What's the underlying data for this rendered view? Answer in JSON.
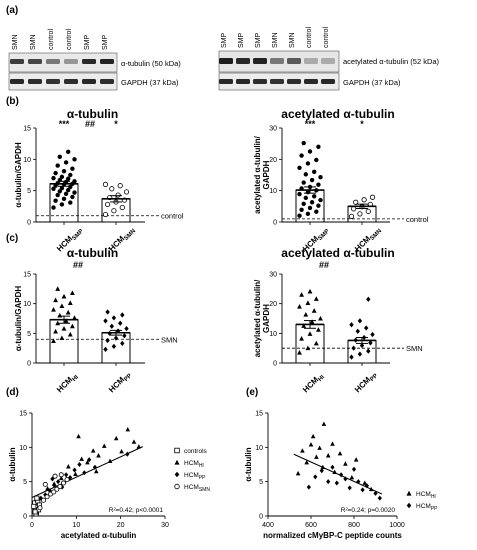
{
  "panel_labels": {
    "a": "(a)",
    "b": "(b)",
    "c": "(c)",
    "d": "(d)",
    "e": "(e)"
  },
  "blots": {
    "left": {
      "lanes": [
        "SMN",
        "SMN",
        "control",
        "control",
        "SMP",
        "SMP"
      ],
      "bands": [
        "α-tubulin (50 kDa)",
        "GAPDH (37 kDa)"
      ]
    },
    "right": {
      "lanes": [
        "SMP",
        "SMP",
        "SMP",
        "SMN",
        "SMN",
        "control",
        "control"
      ],
      "bands": [
        "acetylated α-tubulin (52 kDa)",
        "GAPDH (37 kDa)"
      ]
    }
  },
  "chart_data": [
    {
      "id": "b-left",
      "type": "bar",
      "title": "α-tubulin",
      "ylabel": "α-tubulin/GAPDH",
      "ylim": [
        0,
        15
      ],
      "yticks": [
        "0",
        "5",
        "10",
        "15"
      ],
      "categories": [
        {
          "main": "HCM",
          "sub": "SMP",
          "marker": "circle-filled",
          "mean": 6.1,
          "sem": 0.4,
          "stars": "***",
          "points": [
            2.3,
            2.8,
            3.1,
            3.4,
            3.7,
            4.0,
            4.3,
            4.5,
            4.7,
            4.9,
            5.1,
            5.3,
            5.4,
            5.6,
            5.8,
            6.0,
            6.1,
            6.2,
            6.4,
            6.5,
            6.7,
            6.9,
            7.0,
            7.2,
            7.5,
            7.8,
            8.1,
            8.5,
            9.0,
            9.5,
            10.0,
            10.4,
            11.2
          ]
        },
        {
          "main": "HCM",
          "sub": "SMN",
          "marker": "circle-open",
          "mean": 3.7,
          "sem": 0.5,
          "stars": "*",
          "points": [
            1.2,
            1.8,
            2.3,
            2.8,
            3.2,
            3.5,
            3.9,
            4.3,
            4.8,
            5.3,
            5.8,
            6.0
          ]
        }
      ],
      "between": "##",
      "ref_value": 1,
      "ref_label": "control"
    },
    {
      "id": "b-right",
      "type": "bar",
      "title": "acetylated α-tubulin",
      "ylabel": "acetylated α-tubulin/ GAPDH",
      "ylim": [
        0,
        30
      ],
      "yticks": [
        "0",
        "10",
        "20",
        "30"
      ],
      "categories": [
        {
          "main": "HCM",
          "sub": "SMP",
          "marker": "circle-filled",
          "mean": 10.2,
          "sem": 1.0,
          "stars": "***",
          "points": [
            2.0,
            2.6,
            3.3,
            3.9,
            4.5,
            5.2,
            5.8,
            6.3,
            7.0,
            7.7,
            8.2,
            8.9,
            9.5,
            10.1,
            10.7,
            11.2,
            11.9,
            12.6,
            13.4,
            14.3,
            15.2,
            16.0,
            17.3,
            18.7,
            19.8,
            21.2,
            22.5,
            24.0,
            25.2
          ]
        },
        {
          "main": "HCM",
          "sub": "SMN",
          "marker": "circle-open",
          "mean": 5.0,
          "sem": 0.7,
          "stars": "*",
          "points": [
            1.8,
            2.6,
            3.4,
            4.2,
            4.9,
            5.6,
            6.3,
            7.1,
            7.9
          ]
        }
      ],
      "between": "",
      "ref_value": 1,
      "ref_label": "control"
    },
    {
      "id": "c-left",
      "type": "bar",
      "title": "α-tubulin",
      "ylabel": "α-tubulin/GAPDH",
      "ylim": [
        0,
        15
      ],
      "yticks": [
        "0",
        "5",
        "10",
        "15"
      ],
      "categories": [
        {
          "main": "HCM",
          "sub": "HI",
          "marker": "triangle",
          "mean": 7.3,
          "sem": 0.6,
          "stars": "",
          "points": [
            3.7,
            4.2,
            4.8,
            5.3,
            5.8,
            6.2,
            6.7,
            7.1,
            7.6,
            8.0,
            8.5,
            9.0,
            9.6,
            10.1,
            10.6,
            11.2,
            11.8,
            12.5
          ]
        },
        {
          "main": "HCM",
          "sub": "PP",
          "marker": "diamond",
          "mean": 5.1,
          "sem": 0.4,
          "stars": "",
          "points": [
            2.3,
            2.8,
            3.3,
            3.8,
            4.2,
            4.6,
            5.0,
            5.4,
            5.8,
            6.2,
            6.7,
            7.1,
            7.6,
            8.1,
            8.6
          ]
        }
      ],
      "between": "##",
      "ref_value": 4,
      "ref_label": "SMN"
    },
    {
      "id": "c-right",
      "type": "bar",
      "title": "acetylated α-tubulin",
      "ylabel": "acetylated α-tubulin/ GAPDH",
      "ylim": [
        0,
        30
      ],
      "yticks": [
        "0",
        "10",
        "20",
        "30"
      ],
      "categories": [
        {
          "main": "HCM",
          "sub": "HI",
          "marker": "triangle",
          "mean": 13.0,
          "sem": 1.3,
          "stars": "",
          "points": [
            3.5,
            5.0,
            6.6,
            8.2,
            9.8,
            11.2,
            12.5,
            13.8,
            15.0,
            16.3,
            17.6,
            19.0,
            20.2,
            21.6,
            23.0,
            24.1
          ]
        },
        {
          "main": "HCM",
          "sub": "PP",
          "marker": "diamond",
          "mean": 7.6,
          "sem": 1.0,
          "stars": "",
          "points": [
            2.0,
            3.0,
            4.0,
            5.0,
            5.9,
            6.8,
            7.7,
            8.6,
            9.6,
            10.7,
            11.8,
            12.9,
            14.2,
            21.5
          ]
        }
      ],
      "between": "##",
      "ref_value": 5,
      "ref_label": "SMN"
    },
    {
      "id": "d",
      "type": "scatter",
      "xlabel": "acetylated α-tubulin",
      "ylabel": "α-tubulin",
      "xlim": [
        0,
        30
      ],
      "ylim": [
        0,
        15
      ],
      "xticks": [
        "0",
        "10",
        "20",
        "30"
      ],
      "yticks": [
        "0",
        "5",
        "10",
        "15"
      ],
      "stat": "R²=0.42; p<0.0001",
      "fit": {
        "x1": 0,
        "y1": 2.7,
        "x2": 25,
        "y2": 10.1
      },
      "series": [
        {
          "name": "controls",
          "marker": "square-open",
          "points": [
            [
              0.5,
              0.8
            ],
            [
              0.8,
              1.2
            ],
            [
              1.0,
              0.5
            ],
            [
              1.2,
              1.5
            ],
            [
              0.6,
              1.9
            ],
            [
              1.5,
              0.9
            ],
            [
              0.9,
              0.3
            ],
            [
              1.3,
              2.2
            ],
            [
              0.4,
              1.4
            ],
            [
              1.7,
              1.6
            ],
            [
              1.1,
              2.6
            ],
            [
              0.7,
              0.6
            ]
          ]
        },
        {
          "name": "HCM",
          "sub": "HI",
          "marker": "triangle",
          "points": [
            [
              3.5,
              4.0
            ],
            [
              6.6,
              5.5
            ],
            [
              8.2,
              7.2
            ],
            [
              9.8,
              6.1
            ],
            [
              11.2,
              8.3
            ],
            [
              12.5,
              7.8
            ],
            [
              13.8,
              9.5
            ],
            [
              15.0,
              8.8
            ],
            [
              16.3,
              10.2
            ],
            [
              17.6,
              8.0
            ],
            [
              19.0,
              11.3
            ],
            [
              20.2,
              9.4
            ],
            [
              21.6,
              12.6
            ],
            [
              23.0,
              10.8
            ],
            [
              24.1,
              10.1
            ],
            [
              5.0,
              4.7
            ],
            [
              10.5,
              11.6
            ],
            [
              14.5,
              6.5
            ]
          ]
        },
        {
          "name": "HCM",
          "sub": "PP",
          "marker": "diamond",
          "points": [
            [
              2.0,
              2.6
            ],
            [
              3.0,
              3.1
            ],
            [
              4.0,
              3.7
            ],
            [
              5.0,
              4.5
            ],
            [
              5.9,
              5.0
            ],
            [
              6.8,
              4.2
            ],
            [
              7.7,
              6.0
            ],
            [
              8.6,
              5.6
            ],
            [
              9.6,
              6.7
            ],
            [
              10.7,
              7.5
            ],
            [
              11.8,
              6.3
            ],
            [
              12.9,
              8.2
            ],
            [
              14.2,
              7.1
            ],
            [
              21.5,
              9.0
            ],
            [
              4.6,
              5.4
            ]
          ]
        },
        {
          "name": "HCM",
          "sub": "SMN",
          "marker": "circle-open",
          "points": [
            [
              1.8,
              1.2
            ],
            [
              2.6,
              2.3
            ],
            [
              3.4,
              2.8
            ],
            [
              4.2,
              3.2
            ],
            [
              4.9,
              3.5
            ],
            [
              5.6,
              3.9
            ],
            [
              6.3,
              4.3
            ],
            [
              7.1,
              4.8
            ],
            [
              7.9,
              5.3
            ],
            [
              3.0,
              4.6
            ],
            [
              5.2,
              5.8
            ],
            [
              6.6,
              6.0
            ]
          ]
        }
      ]
    },
    {
      "id": "e",
      "type": "scatter",
      "xlabel": "normalized cMyBP-C peptide counts",
      "ylabel": "α-tubulin",
      "xlim": [
        400,
        1000
      ],
      "ylim": [
        0,
        15
      ],
      "xticks": [
        "400",
        "600",
        "800",
        "1000"
      ],
      "yticks": [
        "0",
        "5",
        "10",
        "15"
      ],
      "stat": "R²=0.24; p=0.0020",
      "fit": {
        "x1": 520,
        "y1": 9.0,
        "x2": 930,
        "y2": 3.2
      },
      "series": [
        {
          "name": "HCM",
          "sub": "HI",
          "marker": "triangle",
          "points": [
            [
              540,
              6.2
            ],
            [
              560,
              9.5
            ],
            [
              580,
              7.8
            ],
            [
              600,
              10.4
            ],
            [
              610,
              11.6
            ],
            [
              625,
              8.6
            ],
            [
              640,
              9.9
            ],
            [
              655,
              7.1
            ],
            [
              660,
              13.4
            ],
            [
              680,
              8.8
            ],
            [
              700,
              10.5
            ],
            [
              710,
              6.4
            ],
            [
              735,
              9.1
            ],
            [
              760,
              7.6
            ],
            [
              790,
              5.6
            ],
            [
              810,
              8.2
            ],
            [
              850,
              4.8
            ],
            [
              880,
              3.9
            ]
          ]
        },
        {
          "name": "HCM",
          "sub": "PP",
          "marker": "diamond",
          "points": [
            [
              590,
              4.2
            ],
            [
              620,
              5.7
            ],
            [
              650,
              6.6
            ],
            [
              680,
              5.0
            ],
            [
              700,
              7.1
            ],
            [
              720,
              4.8
            ],
            [
              740,
              6.0
            ],
            [
              760,
              5.4
            ],
            [
              780,
              4.1
            ],
            [
              800,
              6.8
            ],
            [
              820,
              5.0
            ],
            [
              840,
              3.8
            ],
            [
              860,
              4.4
            ],
            [
              900,
              3.3
            ],
            [
              920,
              2.6
            ]
          ]
        }
      ]
    }
  ]
}
